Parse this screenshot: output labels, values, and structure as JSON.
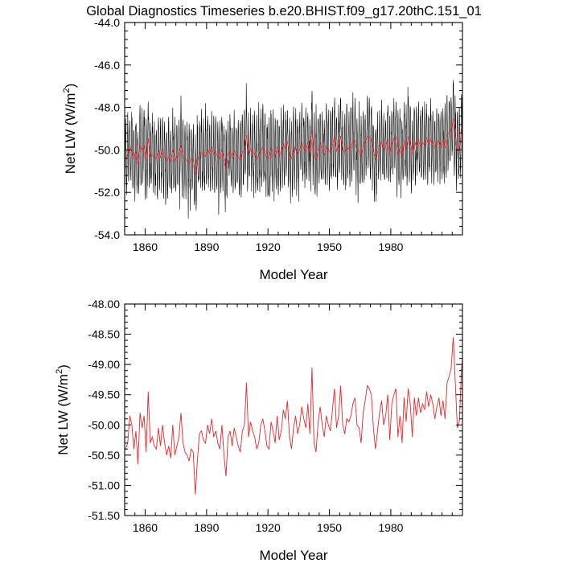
{
  "title": "Global Diagnostics Timeseries b.e20.BHIST.f09_g17.20thC.151_01",
  "colors": {
    "monthly": "#000000",
    "annual": "#e8262b",
    "axis": "#000000"
  },
  "chart_data": [
    {
      "type": "line",
      "panel": "top",
      "xlabel": "Model Year",
      "ylabel_main": "Net LW (W/m",
      "ylabel_sup": "2",
      "ylabel_close": ")",
      "xlim": [
        1850,
        2015
      ],
      "ylim": [
        -54.0,
        -44.0
      ],
      "xticks": [
        1860,
        1890,
        1920,
        1950,
        1980
      ],
      "yticks": [
        -54.0,
        -52.0,
        -50.0,
        -48.0,
        -46.0,
        -44.0
      ],
      "ytick_labels": [
        "-54.0",
        "-52.0",
        "-50.0",
        "-48.0",
        "-46.0",
        "-44.0"
      ],
      "series": [
        {
          "name": "monthly",
          "color": "#000000",
          "seasonal_amplitude": 1.6,
          "noise": 0.5,
          "x_start": 1850,
          "x_end": 2015
        },
        {
          "name": "annual",
          "color": "#e8262b",
          "x_start": 1850,
          "step": 1
        }
      ]
    },
    {
      "type": "line",
      "panel": "bottom",
      "xlabel": "Model Year",
      "ylabel_main": "Net LW (W/m",
      "ylabel_sup": "2",
      "ylabel_close": ")",
      "xlim": [
        1850,
        2015
      ],
      "ylim": [
        -51.5,
        -48.0
      ],
      "xticks": [
        1860,
        1890,
        1920,
        1950,
        1980
      ],
      "yticks": [
        -51.5,
        -51.0,
        -50.5,
        -50.0,
        -49.5,
        -49.0,
        -48.5,
        -48.0
      ],
      "ytick_labels": [
        "-51.50",
        "-51.00",
        "-50.50",
        "-50.00",
        "-49.50",
        "-49.00",
        "-48.50",
        "-48.00"
      ],
      "series": [
        {
          "name": "annual",
          "color": "#e8262b",
          "x_start": 1850,
          "step": 1,
          "values": [
            -50.4,
            -50.3,
            -49.85,
            -50.0,
            -50.4,
            -50.1,
            -50.65,
            -49.8,
            -50.05,
            -49.85,
            -50.45,
            -49.45,
            -50.3,
            -50.2,
            -50.35,
            -50.4,
            -50.05,
            -50.35,
            -50.0,
            -50.3,
            -50.5,
            -50.35,
            -50.55,
            -50.0,
            -50.5,
            -50.35,
            -50.2,
            -49.8,
            -50.3,
            -50.45,
            -50.5,
            -50.6,
            -50.4,
            -50.45,
            -51.15,
            -50.6,
            -50.15,
            -50.1,
            -50.25,
            -50.3,
            -50.0,
            -50.15,
            -49.9,
            -50.2,
            -50.1,
            -50.3,
            -50.4,
            -50.0,
            -50.5,
            -50.85,
            -50.2,
            -50.1,
            -50.35,
            -50.05,
            -50.2,
            -50.35,
            -50.45,
            -50.1,
            -50.0,
            -49.3,
            -50.2,
            -49.95,
            -50.1,
            -50.2,
            -50.4,
            -50.3,
            -50.0,
            -49.9,
            -50.1,
            -50.35,
            -50.4,
            -49.95,
            -50.1,
            -50.3,
            -49.85,
            -50.25,
            -50.1,
            -49.75,
            -49.9,
            -49.6,
            -50.2,
            -50.4,
            -50.05,
            -49.85,
            -50.15,
            -50.0,
            -49.7,
            -49.9,
            -50.05,
            -49.65,
            -50.15,
            -49.05,
            -50.3,
            -50.45,
            -49.95,
            -49.7,
            -50.0,
            -50.2,
            -49.85,
            -50.0,
            -50.1,
            -49.75,
            -49.4,
            -50.05,
            -49.85,
            -49.35,
            -50.0,
            -50.15,
            -49.9,
            -49.95,
            -49.85,
            -49.65,
            -49.55,
            -50.0,
            -50.05,
            -50.3,
            -49.8,
            -49.6,
            -49.35,
            -49.4,
            -49.5,
            -50.05,
            -50.4,
            -50.1,
            -49.8,
            -49.6,
            -50.0,
            -49.85,
            -49.5,
            -50.25,
            -49.65,
            -49.5,
            -49.4,
            -50.2,
            -49.85,
            -50.3,
            -49.55,
            -49.95,
            -49.4,
            -49.65,
            -50.2,
            -49.55,
            -49.85,
            -49.55,
            -49.8,
            -49.65,
            -49.75,
            -49.45,
            -49.7,
            -49.5,
            -49.65,
            -49.9,
            -49.7,
            -49.55,
            -49.85,
            -49.6,
            -49.9,
            -49.3,
            -49.2,
            -49.05,
            -48.55,
            -49.3,
            -50.05,
            -49.95,
            -49.1,
            -48.7,
            -49.3,
            -49.6,
            -49.1,
            -49.4,
            -48.9,
            -48.42,
            -49.4,
            -49.1,
            -49.25,
            -49.25
          ]
        }
      ]
    }
  ]
}
